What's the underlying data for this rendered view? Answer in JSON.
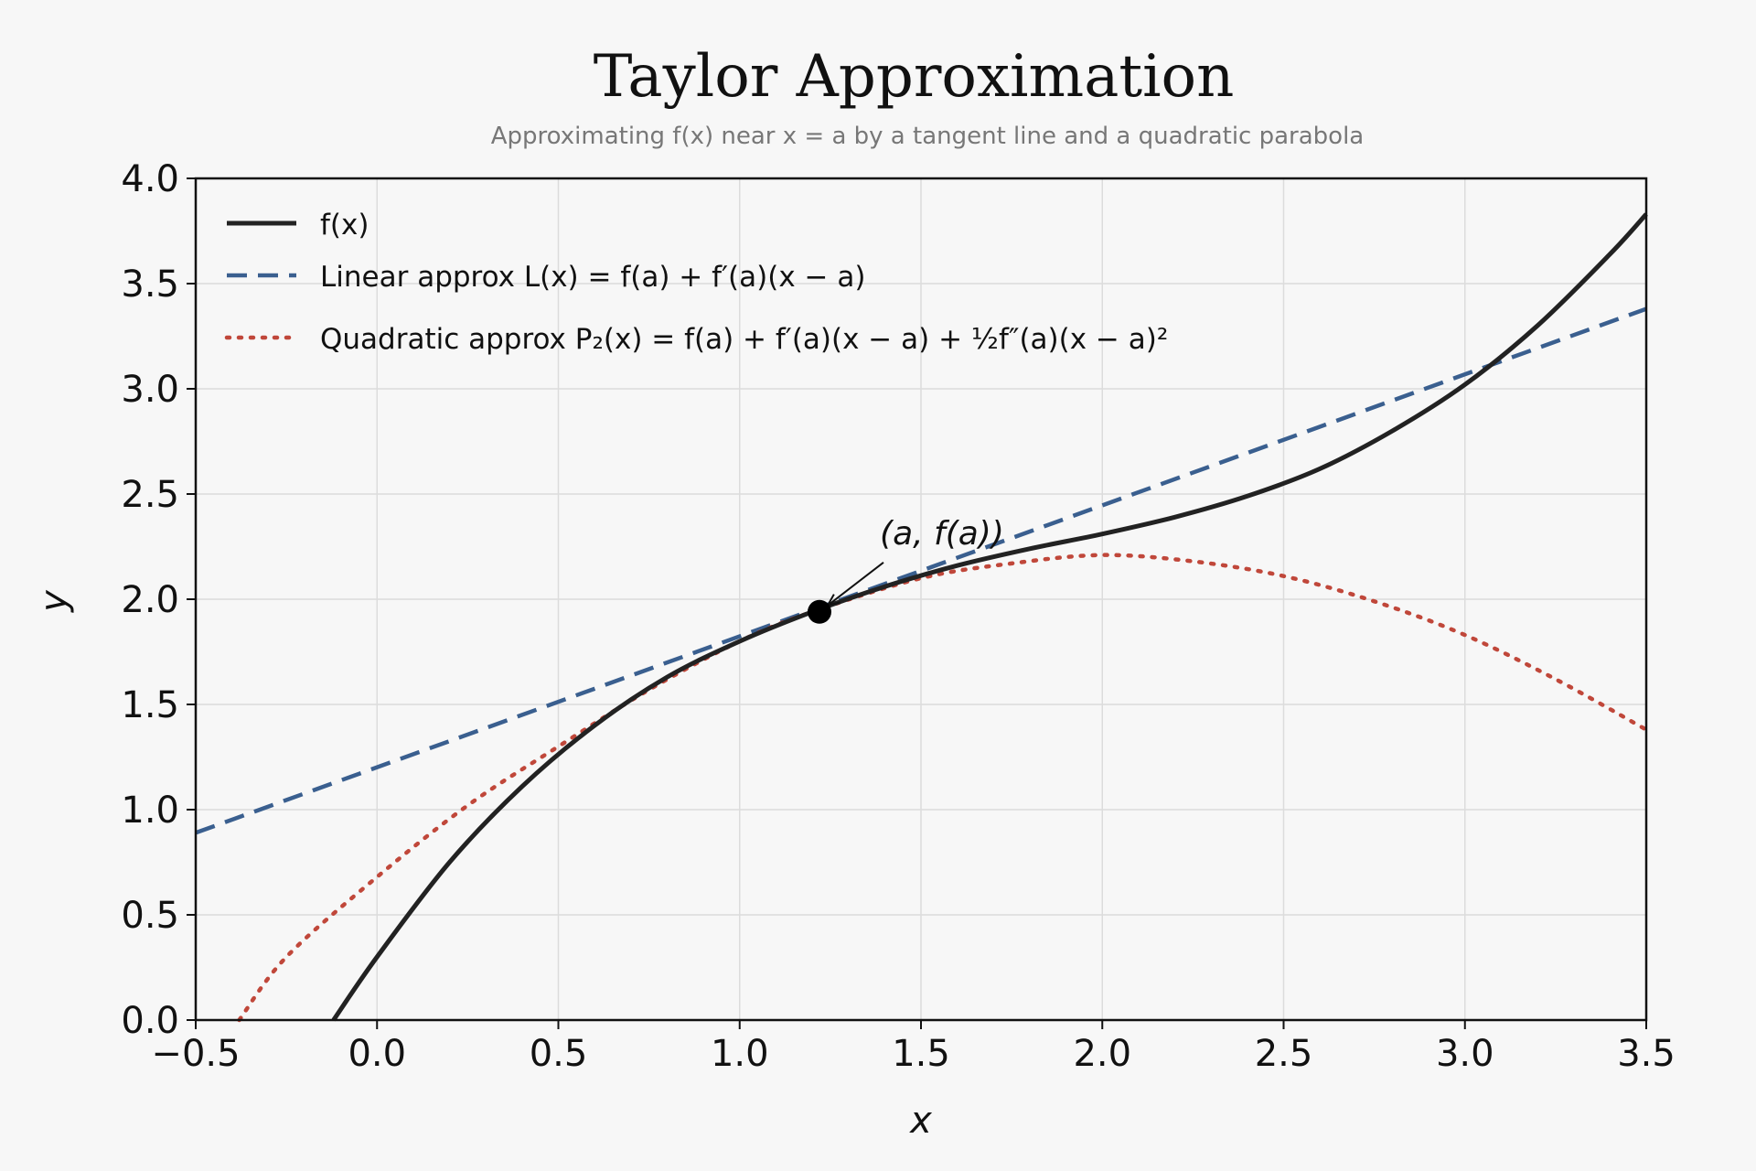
{
  "chart_data": {
    "type": "line",
    "title": "Taylor Approximation",
    "subtitle": "Approximating f(x) near x = a by a tangent line and a quadratic parabola",
    "xlabel": "x",
    "ylabel": "y",
    "xlim": [
      -0.5,
      3.5
    ],
    "ylim": [
      0.0,
      4.0
    ],
    "xticks": [
      -0.5,
      0.0,
      0.5,
      1.0,
      1.5,
      2.0,
      2.5,
      3.0,
      3.5
    ],
    "xtick_labels": [
      "−0.5",
      "0.0",
      "0.5",
      "1.0",
      "1.5",
      "2.0",
      "2.5",
      "3.0",
      "3.5"
    ],
    "yticks": [
      0.0,
      0.5,
      1.0,
      1.5,
      2.0,
      2.5,
      3.0,
      3.5,
      4.0
    ],
    "ytick_labels": [
      "0.0",
      "0.5",
      "1.0",
      "1.5",
      "2.0",
      "2.5",
      "3.0",
      "3.5",
      "4.0"
    ],
    "grid": true,
    "legend_position": "top-left",
    "series": [
      {
        "name": "f(x)",
        "color": "#222222",
        "style": "solid",
        "x": [
          -0.12,
          0.0,
          0.2,
          0.4,
          0.6,
          0.8,
          1.0,
          1.2,
          1.4,
          1.6,
          1.8,
          2.0,
          2.2,
          2.4,
          2.6,
          2.8,
          3.0,
          3.2,
          3.4,
          3.5
        ],
        "y": [
          0.0,
          0.3,
          0.75,
          1.11,
          1.4,
          1.63,
          1.8,
          1.94,
          2.06,
          2.16,
          2.24,
          2.31,
          2.39,
          2.49,
          2.62,
          2.8,
          3.02,
          3.3,
          3.64,
          3.83
        ]
      },
      {
        "name": "Linear approx L(x) = f(a) + f′(a)(x − a)",
        "color": "#3a5f8f",
        "style": "dashed",
        "x": [
          -0.5,
          3.5
        ],
        "y": [
          0.89,
          3.38
        ]
      },
      {
        "name": "Quadratic approx P₂(x) = f(a) + f′(a)(x − a) + ½f″(a)(x − a)²",
        "color": "#c0473a",
        "style": "dotted",
        "x": [
          -0.38,
          -0.25,
          0.0,
          0.25,
          0.5,
          0.75,
          1.0,
          1.2,
          1.5,
          1.75,
          2.0,
          2.25,
          2.5,
          2.75,
          3.0,
          3.25,
          3.5
        ],
        "y": [
          0.0,
          0.3,
          0.68,
          1.02,
          1.3,
          1.57,
          1.8,
          1.94,
          2.1,
          2.17,
          2.21,
          2.18,
          2.11,
          1.99,
          1.83,
          1.62,
          1.38
        ]
      }
    ],
    "annotations": [
      {
        "text": "(a, f(a))",
        "x": 1.22,
        "y": 1.94
      }
    ]
  }
}
